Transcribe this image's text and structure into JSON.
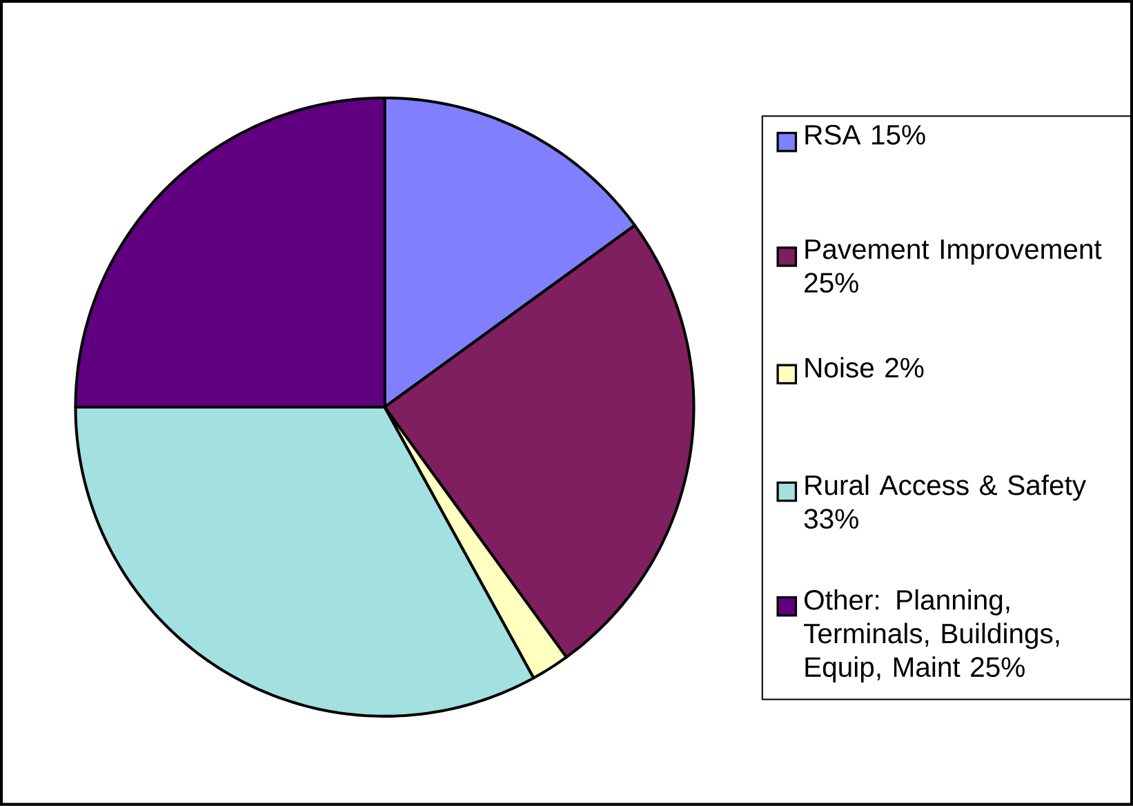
{
  "chart_data": {
    "type": "pie",
    "categories": [
      "RSA 15%",
      "Pavement Improvement 25%",
      "Noise 2%",
      "Rural Access & Safety 33%",
      "Other: Planning, Terminals, Buildings, Equip, Maint 25%"
    ],
    "values": [
      15,
      25,
      2,
      33,
      25
    ],
    "colors": [
      "#8080ff",
      "#7f1f5f",
      "#ffffc0",
      "#a3e0e0",
      "#600080"
    ],
    "legend": "right"
  }
}
